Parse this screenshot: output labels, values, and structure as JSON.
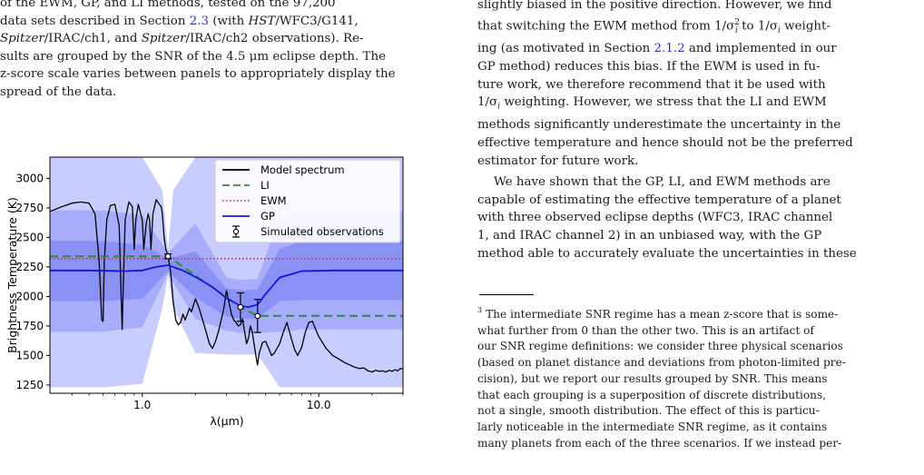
{
  "left": {
    "caption": {
      "line1": "of the EWM, GP, and LI methods, tested on the 97,200",
      "line2_pre": "data sets described in Section ",
      "line2_link": "2.3",
      "line2_mid": " (with ",
      "line2_ital": "HST",
      "line2_post": "/WFC3/G141,",
      "line3_ital1": "Spitzer",
      "line3_mid": "/IRAC/ch1, and ",
      "line3_ital2": "Spitzer",
      "line3_post": "/IRAC/ch2 observations). Re-",
      "line4": "sults are grouped by the SNR of the 4.5 μm eclipse depth. The",
      "line5": "z-score scale varies between panels to appropriately display the",
      "line6": "spread of the data."
    }
  },
  "chart_data": {
    "type": "line",
    "xlabel": "λ(μm)",
    "ylabel": "Brightness Temperature (K)",
    "xscale": "log",
    "xlim": [
      0.3,
      30
    ],
    "ylim": [
      1180,
      3180
    ],
    "xticks": [
      {
        "value": 1.0,
        "label": "1.0"
      },
      {
        "value": 10.0,
        "label": "10.0"
      }
    ],
    "yticks": [
      {
        "value": 1250,
        "label": "1250"
      },
      {
        "value": 1500,
        "label": "1500"
      },
      {
        "value": 1750,
        "label": "1750"
      },
      {
        "value": 2000,
        "label": "2000"
      },
      {
        "value": 2250,
        "label": "2250"
      },
      {
        "value": 2500,
        "label": "2500"
      },
      {
        "value": 2750,
        "label": "2750"
      },
      {
        "value": 3000,
        "label": "3000"
      }
    ],
    "legend": {
      "position": "top-right",
      "entries": [
        {
          "label": "Model spectrum",
          "style": "solid",
          "color": "#000000"
        },
        {
          "label": "LI",
          "style": "dashed",
          "color": "#2e8b2e"
        },
        {
          "label": "EWM",
          "style": "dotted",
          "color": "#e8222e"
        },
        {
          "label": "GP",
          "style": "solid",
          "color": "#1414e0"
        },
        {
          "label": "Simulated observations",
          "style": "errorbar",
          "color": "#000000"
        }
      ]
    },
    "colors": {
      "band_outer": "#c9cdfd",
      "band_mid": "#a7adfa",
      "band_inner": "#8a91f5",
      "model": "#000000",
      "li": "#2e8b2e",
      "ewm": "#e8222e",
      "gp": "#1414e0"
    },
    "ewm_value": 2320,
    "gp": {
      "x": [
        0.3,
        0.5,
        0.8,
        1.0,
        1.2,
        1.4,
        1.7,
        2.0,
        2.5,
        3.0,
        3.6,
        4.0,
        4.5,
        5.0,
        6.0,
        8.0,
        12.0,
        30.0
      ],
      "y": [
        2220,
        2220,
        2215,
        2220,
        2250,
        2265,
        2220,
        2165,
        2080,
        1985,
        1920,
        1910,
        1930,
        2020,
        2160,
        2215,
        2220,
        2220
      ]
    },
    "gp_band_1sigma": {
      "x": [
        0.3,
        0.6,
        1.0,
        1.4,
        2.0,
        3.0,
        3.6,
        4.5,
        6.0,
        8.0,
        30.0
      ],
      "lower": [
        1960,
        1960,
        1980,
        2215,
        1990,
        1830,
        1810,
        1810,
        1960,
        1970,
        1970
      ],
      "upper": [
        2470,
        2470,
        2440,
        2325,
        2380,
        2070,
        2050,
        2060,
        2400,
        2470,
        2470
      ]
    },
    "gp_band_2sigma": {
      "x": [
        0.3,
        0.6,
        1.0,
        1.4,
        2.0,
        3.0,
        3.6,
        4.5,
        6.0,
        8.0,
        30.0
      ],
      "lower": [
        1700,
        1700,
        1740,
        2190,
        1810,
        1710,
        1690,
        1690,
        1700,
        1720,
        1720
      ],
      "upper": [
        2730,
        2730,
        2690,
        2370,
        2620,
        2160,
        2140,
        2150,
        2680,
        2720,
        2720
      ]
    },
    "gp_band_3sigma": {
      "x": [
        0.3,
        0.6,
        1.0,
        1.3,
        1.4,
        1.5,
        2.0,
        3.0,
        3.6,
        4.5,
        6.0,
        8.0,
        30.0
      ],
      "lower": [
        1230,
        1230,
        1260,
        1900,
        2180,
        1900,
        1520,
        1510,
        1505,
        1510,
        1230,
        1230,
        1230
      ],
      "upper": [
        3180,
        3180,
        3180,
        2900,
        2400,
        2900,
        3180,
        3180,
        3180,
        3180,
        3180,
        3180,
        3180
      ]
    },
    "li": {
      "x": [
        0.3,
        1.4,
        3.6,
        4.5,
        30.0
      ],
      "y": [
        2340,
        2340,
        1910,
        1835,
        1835
      ]
    },
    "observations": [
      {
        "x": 1.4,
        "y": 2340,
        "err": 20
      },
      {
        "x": 3.6,
        "y": 1910,
        "err": 120
      },
      {
        "x": 4.5,
        "y": 1835,
        "err": 140
      }
    ],
    "model_spectrum": {
      "x": [
        0.3,
        0.35,
        0.4,
        0.45,
        0.5,
        0.54,
        0.57,
        0.59,
        0.6,
        0.61,
        0.63,
        0.66,
        0.7,
        0.74,
        0.76,
        0.77,
        0.78,
        0.8,
        0.84,
        0.88,
        0.9,
        0.92,
        0.95,
        0.98,
        1.0,
        1.02,
        1.05,
        1.08,
        1.1,
        1.12,
        1.15,
        1.2,
        1.25,
        1.28,
        1.3,
        1.33,
        1.36,
        1.4,
        1.45,
        1.5,
        1.55,
        1.6,
        1.65,
        1.7,
        1.75,
        1.8,
        1.85,
        1.9,
        2.0,
        2.1,
        2.2,
        2.3,
        2.4,
        2.5,
        2.6,
        2.7,
        2.8,
        2.9,
        3.0,
        3.1,
        3.2,
        3.3,
        3.4,
        3.5,
        3.6,
        3.7,
        3.8,
        3.9,
        4.0,
        4.1,
        4.2,
        4.3,
        4.4,
        4.5,
        4.6,
        4.8,
        5.0,
        5.2,
        5.4,
        5.6,
        5.8,
        6.0,
        6.3,
        6.6,
        7.0,
        7.3,
        7.6,
        8.0,
        8.4,
        8.8,
        9.2,
        9.6,
        10.0,
        10.5,
        11.0,
        12.0,
        13.0,
        14.0,
        15.0,
        16.0,
        17.0,
        18.0,
        19.0,
        20.0,
        21.0,
        22.0,
        23.0,
        24.0,
        25.0,
        26.0,
        27.0,
        28.0,
        29.0,
        30.0
      ],
      "y": [
        2720,
        2760,
        2790,
        2800,
        2790,
        2700,
        2300,
        1800,
        1790,
        2300,
        2650,
        2770,
        2780,
        2600,
        2000,
        1720,
        2050,
        2650,
        2800,
        2760,
        2400,
        2650,
        2780,
        2700,
        2650,
        2400,
        2600,
        2700,
        2650,
        2400,
        2700,
        2820,
        2780,
        2760,
        2700,
        2500,
        2400,
        2350,
        2200,
        1950,
        1800,
        1760,
        1780,
        1850,
        1800,
        1850,
        1900,
        1870,
        1980,
        1900,
        1800,
        1700,
        1600,
        1560,
        1620,
        1700,
        1800,
        1900,
        2050,
        1950,
        1850,
        1800,
        1780,
        1750,
        1760,
        1810,
        1700,
        1600,
        1650,
        1750,
        1700,
        1600,
        1500,
        1420,
        1520,
        1610,
        1620,
        1560,
        1500,
        1520,
        1560,
        1600,
        1700,
        1780,
        1640,
        1550,
        1500,
        1570,
        1700,
        1780,
        1790,
        1720,
        1660,
        1610,
        1560,
        1500,
        1470,
        1440,
        1420,
        1400,
        1390,
        1395,
        1370,
        1360,
        1375,
        1365,
        1370,
        1360,
        1375,
        1365,
        1380,
        1370,
        1390,
        1385
      ]
    }
  },
  "right": {
    "top_lines": {
      "line0": "slightly biased in the positive direction. However, we find",
      "line1_pre": "that switching the EWM method from 1/σ",
      "line1_sup": "2",
      "line1_sub": "i",
      "line1_mid": " to 1/σ",
      "line1_sub2": "i",
      "line1_post": " weight-",
      "line2_pre": "ing (as motivated in Section ",
      "line2_link": "2.1.2",
      "line2_post": " and implemented in our",
      "line3": "GP method) reduces this bias. If the EWM is used in fu-",
      "line4": "ture work, we therefore recommend that it be used with",
      "line5_pre": "1/σ",
      "line5_sub": "i",
      "line5_post": " weighting. However, we stress that the LI and EWM",
      "line6": "methods significantly underestimate the uncertainty in the",
      "line7": "effective temperature and hence should not be the preferred",
      "line8": "estimator for future work."
    },
    "para2": {
      "line1": "We have shown that the GP, LI, and EWM methods are",
      "line2": "capable of estimating the effective temperature of a planet",
      "line3": "with three observed eclipse depths (WFC3, IRAC channel",
      "line4": "1, and IRAC channel 2) in an unbiased way, with the GP",
      "line5": "method able to accurately evaluate the uncertainties in these"
    },
    "footnote": {
      "marker": "3",
      "line1": "The intermediate SNR regime has a mean z-score that is some-",
      "line2": "what further from 0 than the other two. This is an artifact of",
      "line3": "our SNR regime definitions: we consider three physical scenarios",
      "line4": "(based on planet distance and deviations from photon-limited pre-",
      "line5": "cision), but we report our results grouped by SNR. This means",
      "line6": "that each grouping is a superposition of discrete distributions,",
      "line7": "not a single, smooth distribution. The effect of this is particu-",
      "line8": "larly noticeable in the intermediate SNR regime, as it contains",
      "line9": "many planets from each of the three scenarios. If we instead per-"
    }
  }
}
